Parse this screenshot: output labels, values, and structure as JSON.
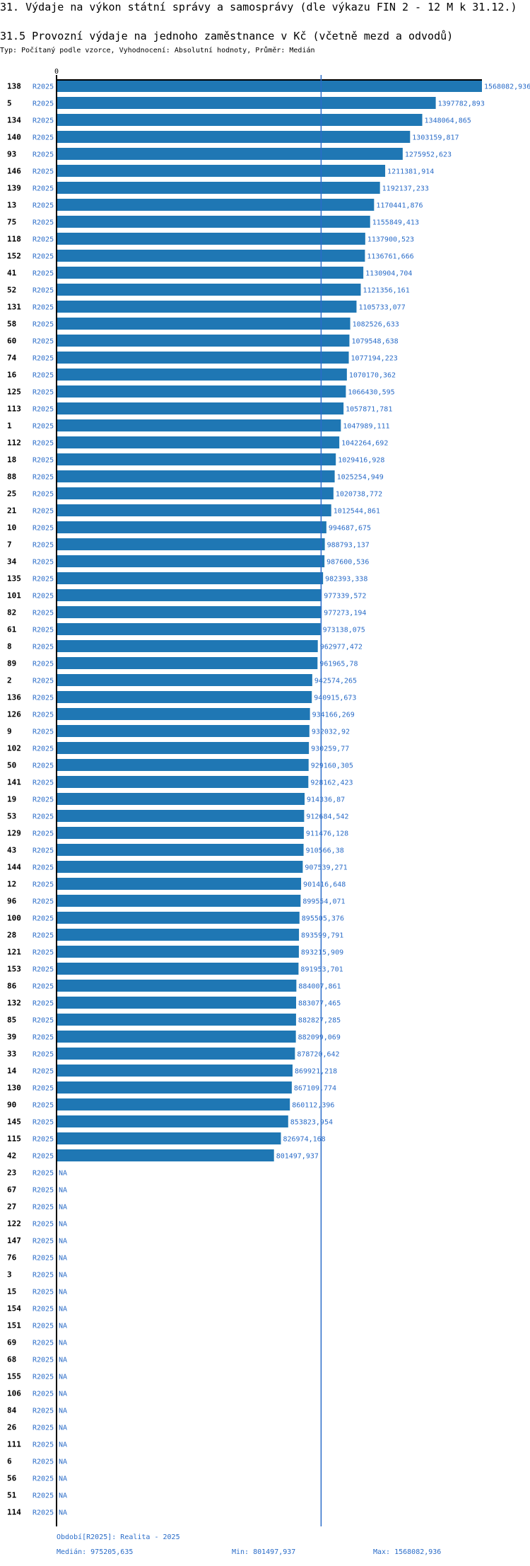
{
  "header": {
    "section_title": "31. Výdaje na výkon státní správy a samosprávy (dle výkazu FIN 2 - 12 M k 31.12.)",
    "chart_title": "31.5 Provozní výdaje na jednoho zaměstnance v Kč (včetně mezd a odvodů)",
    "subtitle": "Typ: Počítaný podle vzorce, Vyhodnocení: Absolutní hodnoty, Průměr: Medián"
  },
  "footer": {
    "period_note": "Období[R2025]: Realita - 2025",
    "median": "Medián: 975205,635",
    "min": "Min: 801497,937",
    "max": "Max: 1568082,936"
  },
  "colors": {
    "bar": "#1f77b4",
    "accent_text": "#2a6cc8",
    "median_line": "#2a6cc8",
    "axis": "#000000"
  },
  "chart_data": {
    "type": "bar",
    "orientation": "horizontal",
    "axis_tick": "0",
    "xlim": [
      0,
      1568082.936
    ],
    "median": 975205.635,
    "period": "R2025",
    "rows": [
      {
        "id": "138",
        "value": 1568082.936,
        "label": "1568082,936"
      },
      {
        "id": "5",
        "value": 1397782.893,
        "label": "1397782,893"
      },
      {
        "id": "134",
        "value": 1348064.865,
        "label": "1348064,865"
      },
      {
        "id": "140",
        "value": 1303159.817,
        "label": "1303159,817"
      },
      {
        "id": "93",
        "value": 1275952.623,
        "label": "1275952,623"
      },
      {
        "id": "146",
        "value": 1211381.914,
        "label": "1211381,914"
      },
      {
        "id": "139",
        "value": 1192137.233,
        "label": "1192137,233"
      },
      {
        "id": "13",
        "value": 1170441.876,
        "label": "1170441,876"
      },
      {
        "id": "75",
        "value": 1155849.413,
        "label": "1155849,413"
      },
      {
        "id": "118",
        "value": 1137900.523,
        "label": "1137900,523"
      },
      {
        "id": "152",
        "value": 1136761.666,
        "label": "1136761,666"
      },
      {
        "id": "41",
        "value": 1130904.704,
        "label": "1130904,704"
      },
      {
        "id": "52",
        "value": 1121356.161,
        "label": "1121356,161"
      },
      {
        "id": "131",
        "value": 1105733.077,
        "label": "1105733,077"
      },
      {
        "id": "58",
        "value": 1082526.633,
        "label": "1082526,633"
      },
      {
        "id": "60",
        "value": 1079548.638,
        "label": "1079548,638"
      },
      {
        "id": "74",
        "value": 1077194.223,
        "label": "1077194,223"
      },
      {
        "id": "16",
        "value": 1070170.362,
        "label": "1070170,362"
      },
      {
        "id": "125",
        "value": 1066430.595,
        "label": "1066430,595"
      },
      {
        "id": "113",
        "value": 1057871.781,
        "label": "1057871,781"
      },
      {
        "id": "1",
        "value": 1047989.111,
        "label": "1047989,111"
      },
      {
        "id": "112",
        "value": 1042264.692,
        "label": "1042264,692"
      },
      {
        "id": "18",
        "value": 1029416.928,
        "label": "1029416,928"
      },
      {
        "id": "88",
        "value": 1025254.949,
        "label": "1025254,949"
      },
      {
        "id": "25",
        "value": 1020738.772,
        "label": "1020738,772"
      },
      {
        "id": "21",
        "value": 1012544.861,
        "label": "1012544,861"
      },
      {
        "id": "10",
        "value": 994687.675,
        "label": "994687,675"
      },
      {
        "id": "7",
        "value": 988793.137,
        "label": "988793,137"
      },
      {
        "id": "34",
        "value": 987600.536,
        "label": "987600,536"
      },
      {
        "id": "135",
        "value": 982393.338,
        "label": "982393,338"
      },
      {
        "id": "101",
        "value": 977339.572,
        "label": "977339,572"
      },
      {
        "id": "82",
        "value": 977273.194,
        "label": "977273,194"
      },
      {
        "id": "61",
        "value": 973138.075,
        "label": "973138,075"
      },
      {
        "id": "8",
        "value": 962977.472,
        "label": "962977,472"
      },
      {
        "id": "89",
        "value": 961965.78,
        "label": "961965,78"
      },
      {
        "id": "2",
        "value": 942574.265,
        "label": "942574,265"
      },
      {
        "id": "136",
        "value": 940915.673,
        "label": "940915,673"
      },
      {
        "id": "126",
        "value": 934166.269,
        "label": "934166,269"
      },
      {
        "id": "9",
        "value": 932032.92,
        "label": "932032,92"
      },
      {
        "id": "102",
        "value": 930259.77,
        "label": "930259,77"
      },
      {
        "id": "50",
        "value": 929160.305,
        "label": "929160,305"
      },
      {
        "id": "141",
        "value": 928162.423,
        "label": "928162,423"
      },
      {
        "id": "19",
        "value": 914336.87,
        "label": "914336,87"
      },
      {
        "id": "53",
        "value": 912684.542,
        "label": "912684,542"
      },
      {
        "id": "129",
        "value": 911476.128,
        "label": "911476,128"
      },
      {
        "id": "43",
        "value": 910566.38,
        "label": "910566,38"
      },
      {
        "id": "144",
        "value": 907539.271,
        "label": "907539,271"
      },
      {
        "id": "12",
        "value": 901416.648,
        "label": "901416,648"
      },
      {
        "id": "96",
        "value": 899554.071,
        "label": "899554,071"
      },
      {
        "id": "100",
        "value": 895505.376,
        "label": "895505,376"
      },
      {
        "id": "28",
        "value": 893599.791,
        "label": "893599,791"
      },
      {
        "id": "121",
        "value": 893215.909,
        "label": "893215,909"
      },
      {
        "id": "153",
        "value": 891953.701,
        "label": "891953,701"
      },
      {
        "id": "86",
        "value": 884007.861,
        "label": "884007,861"
      },
      {
        "id": "132",
        "value": 883077.465,
        "label": "883077,465"
      },
      {
        "id": "85",
        "value": 882827.285,
        "label": "882827,285"
      },
      {
        "id": "39",
        "value": 882099.069,
        "label": "882099,069"
      },
      {
        "id": "33",
        "value": 878720.642,
        "label": "878720,642"
      },
      {
        "id": "14",
        "value": 869921.218,
        "label": "869921,218"
      },
      {
        "id": "130",
        "value": 867109.774,
        "label": "867109,774"
      },
      {
        "id": "90",
        "value": 860112.396,
        "label": "860112,396"
      },
      {
        "id": "145",
        "value": 853823.954,
        "label": "853823,954"
      },
      {
        "id": "115",
        "value": 826974.168,
        "label": "826974,168"
      },
      {
        "id": "42",
        "value": 801497.937,
        "label": "801497,937"
      },
      {
        "id": "23",
        "value": null,
        "label": "NA"
      },
      {
        "id": "67",
        "value": null,
        "label": "NA"
      },
      {
        "id": "27",
        "value": null,
        "label": "NA"
      },
      {
        "id": "122",
        "value": null,
        "label": "NA"
      },
      {
        "id": "147",
        "value": null,
        "label": "NA"
      },
      {
        "id": "76",
        "value": null,
        "label": "NA"
      },
      {
        "id": "3",
        "value": null,
        "label": "NA"
      },
      {
        "id": "15",
        "value": null,
        "label": "NA"
      },
      {
        "id": "154",
        "value": null,
        "label": "NA"
      },
      {
        "id": "151",
        "value": null,
        "label": "NA"
      },
      {
        "id": "69",
        "value": null,
        "label": "NA"
      },
      {
        "id": "68",
        "value": null,
        "label": "NA"
      },
      {
        "id": "155",
        "value": null,
        "label": "NA"
      },
      {
        "id": "106",
        "value": null,
        "label": "NA"
      },
      {
        "id": "84",
        "value": null,
        "label": "NA"
      },
      {
        "id": "26",
        "value": null,
        "label": "NA"
      },
      {
        "id": "111",
        "value": null,
        "label": "NA"
      },
      {
        "id": "6",
        "value": null,
        "label": "NA"
      },
      {
        "id": "56",
        "value": null,
        "label": "NA"
      },
      {
        "id": "51",
        "value": null,
        "label": "NA"
      },
      {
        "id": "114",
        "value": null,
        "label": "NA"
      }
    ]
  }
}
